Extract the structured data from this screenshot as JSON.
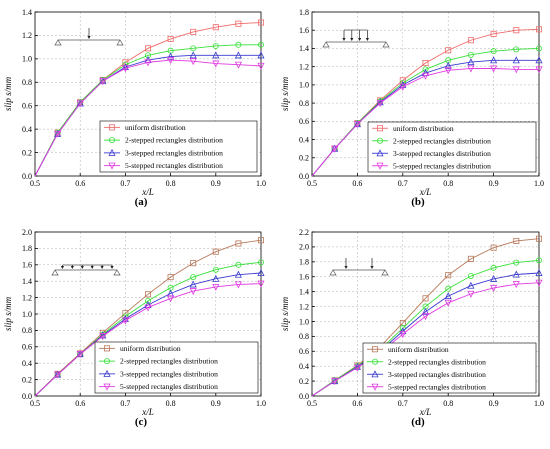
{
  "colors": {
    "uniform_a": "#f06a6a",
    "two_step": "#39e039",
    "three_step": "#3a3ad0",
    "five_step": "#e23ae2",
    "uniform_cd": "#b8785a"
  },
  "chart_data": [
    {
      "type": "line",
      "panel_label": "(a)",
      "xlabel": "x/L",
      "ylabel": "slip s/mm",
      "xlim": [
        0.5,
        1.0
      ],
      "ylim": [
        0.0,
        1.4
      ],
      "xticks": [
        "0.5",
        "0.6",
        "0.7",
        "0.8",
        "0.9",
        "1.0"
      ],
      "yticks": [
        "0.0",
        "0.2",
        "0.4",
        "0.6",
        "0.8",
        "1.0",
        "1.2",
        "1.4"
      ],
      "grid": true,
      "legend_position": "lower-right",
      "x": [
        0.5,
        0.55,
        0.6,
        0.65,
        0.7,
        0.75,
        0.8,
        0.85,
        0.9,
        0.95,
        1.0
      ],
      "series": [
        {
          "name": "uniform distribution",
          "marker": "square",
          "color_key": "uniform_a",
          "values": [
            0.0,
            0.37,
            0.63,
            0.82,
            0.97,
            1.09,
            1.17,
            1.23,
            1.27,
            1.3,
            1.31
          ]
        },
        {
          "name": "2-stepped rectangles distribution",
          "marker": "circle",
          "color_key": "two_step",
          "values": [
            0.0,
            0.37,
            0.63,
            0.82,
            0.95,
            1.03,
            1.07,
            1.09,
            1.11,
            1.12,
            1.12
          ]
        },
        {
          "name": "3-stepped rectangles distribution",
          "marker": "triangle-up",
          "color_key": "three_step",
          "values": [
            0.0,
            0.36,
            0.62,
            0.81,
            0.93,
            0.99,
            1.02,
            1.03,
            1.03,
            1.03,
            1.03
          ]
        },
        {
          "name": "5-stepped rectangles distribution",
          "marker": "triangle-down",
          "color_key": "five_step",
          "values": [
            0.0,
            0.36,
            0.62,
            0.81,
            0.92,
            0.97,
            0.99,
            0.98,
            0.96,
            0.95,
            0.94
          ]
        }
      ]
    },
    {
      "type": "line",
      "panel_label": "(b)",
      "xlabel": "x/L",
      "ylabel": "slip s/mm",
      "xlim": [
        0.5,
        1.0
      ],
      "ylim": [
        0.0,
        1.8
      ],
      "xticks": [
        "0.5",
        "0.6",
        "0.7",
        "0.8",
        "0.9",
        "1.0"
      ],
      "yticks": [
        "0.0",
        "0.2",
        "0.4",
        "0.6",
        "0.8",
        "1.0",
        "1.2",
        "1.4",
        "1.6",
        "1.8"
      ],
      "grid": true,
      "legend_position": "lower-right",
      "x": [
        0.5,
        0.55,
        0.6,
        0.65,
        0.7,
        0.75,
        0.8,
        0.85,
        0.9,
        0.95,
        1.0
      ],
      "series": [
        {
          "name": "uniform distribution",
          "marker": "square",
          "color_key": "uniform_a",
          "values": [
            0.0,
            0.3,
            0.58,
            0.83,
            1.05,
            1.24,
            1.38,
            1.49,
            1.56,
            1.6,
            1.61
          ]
        },
        {
          "name": "2-stepped rectangles distribution",
          "marker": "circle",
          "color_key": "two_step",
          "values": [
            0.0,
            0.3,
            0.58,
            0.82,
            1.02,
            1.17,
            1.27,
            1.33,
            1.37,
            1.39,
            1.4
          ]
        },
        {
          "name": "3-stepped rectangles distribution",
          "marker": "triangle-up",
          "color_key": "three_step",
          "values": [
            0.0,
            0.3,
            0.57,
            0.81,
            1.0,
            1.13,
            1.21,
            1.25,
            1.27,
            1.27,
            1.27
          ]
        },
        {
          "name": "5-stepped rectangles distribution",
          "marker": "triangle-down",
          "color_key": "five_step",
          "values": [
            0.0,
            0.3,
            0.57,
            0.8,
            0.98,
            1.1,
            1.16,
            1.18,
            1.18,
            1.17,
            1.17
          ]
        }
      ]
    },
    {
      "type": "line",
      "panel_label": "(c)",
      "xlabel": "x/L",
      "ylabel": "slip s/mm",
      "xlim": [
        0.5,
        1.0
      ],
      "ylim": [
        0.0,
        2.0
      ],
      "xticks": [
        "0.5",
        "0.6",
        "0.7",
        "0.8",
        "0.9",
        "1.0"
      ],
      "yticks": [
        "0.0",
        "0.2",
        "0.4",
        "0.6",
        "0.8",
        "1.0",
        "1.2",
        "1.4",
        "1.6",
        "1.8",
        "2.0"
      ],
      "grid": true,
      "legend_position": "lower-right",
      "x": [
        0.5,
        0.55,
        0.6,
        0.65,
        0.7,
        0.75,
        0.8,
        0.85,
        0.9,
        0.95,
        1.0
      ],
      "series": [
        {
          "name": "uniform distribution",
          "marker": "square",
          "color_key": "uniform_cd",
          "values": [
            0.0,
            0.27,
            0.52,
            0.77,
            1.01,
            1.24,
            1.45,
            1.62,
            1.76,
            1.86,
            1.9
          ]
        },
        {
          "name": "2-stepped rectangles distribution",
          "marker": "circle",
          "color_key": "two_step",
          "values": [
            0.0,
            0.26,
            0.51,
            0.75,
            0.97,
            1.16,
            1.32,
            1.45,
            1.54,
            1.6,
            1.63
          ]
        },
        {
          "name": "3-stepped rectangles distribution",
          "marker": "triangle-up",
          "color_key": "three_step",
          "values": [
            0.0,
            0.26,
            0.51,
            0.74,
            0.94,
            1.11,
            1.25,
            1.36,
            1.43,
            1.48,
            1.5
          ]
        },
        {
          "name": "5-stepped rectangles distribution",
          "marker": "triangle-down",
          "color_key": "five_step",
          "values": [
            0.0,
            0.26,
            0.51,
            0.73,
            0.92,
            1.08,
            1.19,
            1.28,
            1.33,
            1.36,
            1.37
          ]
        }
      ]
    },
    {
      "type": "line",
      "panel_label": "(d)",
      "xlabel": "x/L",
      "ylabel": "slip s/mm",
      "xlim": [
        0.5,
        1.0
      ],
      "ylim": [
        0.0,
        2.2
      ],
      "xticks": [
        "0.5",
        "0.6",
        "0.7",
        "0.8",
        "0.9",
        "1.0"
      ],
      "yticks": [
        "0.0",
        "0.2",
        "0.4",
        "0.6",
        "0.8",
        "1.0",
        "1.2",
        "1.4",
        "1.6",
        "1.8",
        "2.0",
        "2.2"
      ],
      "grid": true,
      "legend_position": "lower-right",
      "x": [
        0.5,
        0.55,
        0.6,
        0.65,
        0.7,
        0.75,
        0.8,
        0.85,
        0.9,
        0.95,
        1.0
      ],
      "series": [
        {
          "name": "uniform distribution",
          "marker": "square",
          "color_key": "uniform_cd",
          "values": [
            0.0,
            0.21,
            0.41,
            0.66,
            0.98,
            1.31,
            1.62,
            1.84,
            1.99,
            2.08,
            2.11
          ]
        },
        {
          "name": "2-stepped rectangles distribution",
          "marker": "circle",
          "color_key": "two_step",
          "values": [
            0.0,
            0.21,
            0.4,
            0.62,
            0.91,
            1.2,
            1.44,
            1.61,
            1.72,
            1.79,
            1.82
          ]
        },
        {
          "name": "3-stepped rectangles distribution",
          "marker": "triangle-up",
          "color_key": "three_step",
          "values": [
            0.0,
            0.2,
            0.39,
            0.6,
            0.87,
            1.13,
            1.34,
            1.48,
            1.57,
            1.63,
            1.65
          ]
        },
        {
          "name": "5-stepped rectangles distribution",
          "marker": "triangle-down",
          "color_key": "five_step",
          "values": [
            0.0,
            0.2,
            0.38,
            0.58,
            0.83,
            1.07,
            1.25,
            1.37,
            1.45,
            1.5,
            1.52
          ]
        }
      ]
    }
  ]
}
